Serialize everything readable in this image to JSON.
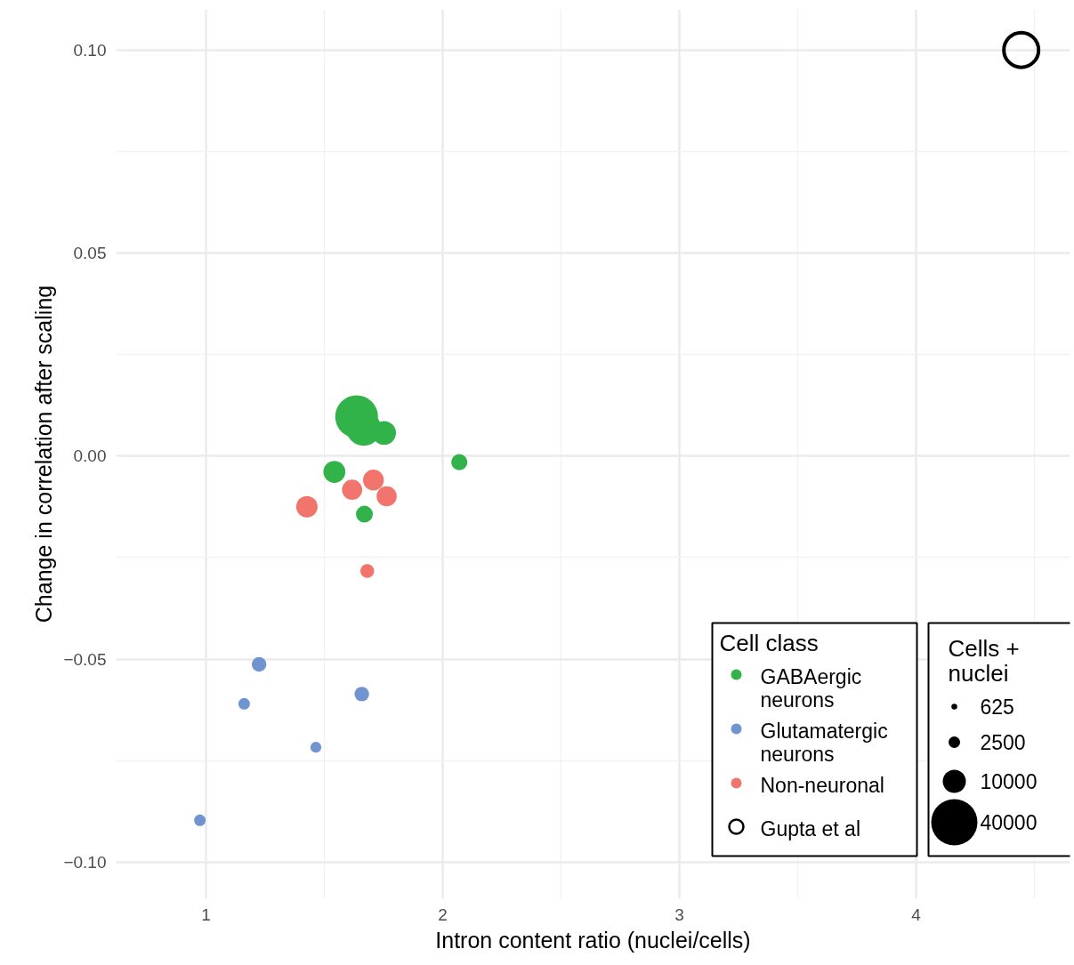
{
  "chart_data": {
    "type": "bubble",
    "xlabel": "Intron content ratio (nuclei/cells)",
    "ylabel": "Change in correlation after scaling",
    "xlim": [
      0.62,
      4.65
    ],
    "ylim": [
      -0.109,
      0.11
    ],
    "xticks": [
      1,
      2,
      3,
      4
    ],
    "yticks": [
      {
        "value": -0.1,
        "label": "−0.10"
      },
      {
        "value": -0.05,
        "label": "−0.05"
      },
      {
        "value": 0,
        "label": "0.00"
      },
      {
        "value": 0.05,
        "label": "0.05"
      },
      {
        "value": 0.1,
        "label": "0.10"
      }
    ],
    "grid": true,
    "legend": "bottom right",
    "legend_title": "Cell class",
    "marker": "circle",
    "size_legend": [
      625,
      2500,
      10000,
      40000
    ],
    "annotations": [
      "Cells + nuclei"
    ],
    "series": [
      {
        "name": "GABAergic neurons",
        "color": "#32b34a",
        "x": [
          1.636,
          1.666,
          1.752,
          1.542,
          2.07,
          1.669
        ],
        "values": [
          0.0097,
          0.0068,
          0.0057,
          -0.0039,
          -0.0015,
          -0.0143
        ],
        "sizes": [
          34200,
          22500,
          10600,
          9000,
          4900,
          5300
        ]
      },
      {
        "name": "Glutamatergic neurons",
        "color": "#6f94cf",
        "x": [
          1.224,
          1.161,
          1.658,
          1.464,
          0.974
        ],
        "values": [
          -0.0513,
          -0.061,
          -0.0586,
          -0.0717,
          -0.0897
        ],
        "sizes": [
          4000,
          2500,
          4000,
          2200,
          2500
        ]
      },
      {
        "name": "Non-neuronal",
        "color": "#f2756d",
        "x": [
          1.426,
          1.617,
          1.707,
          1.763,
          1.681
        ],
        "values": [
          -0.0125,
          -0.0083,
          -0.0059,
          -0.0099,
          -0.0283
        ],
        "sizes": [
          8600,
          7600,
          8100,
          7600,
          3600
        ]
      },
      {
        "name": "Gupta et al",
        "color": "#000000",
        "marker": "circle_open",
        "x": [
          4.444
        ],
        "values": [
          0.1
        ],
        "sizes": [
          22500
        ]
      }
    ]
  }
}
